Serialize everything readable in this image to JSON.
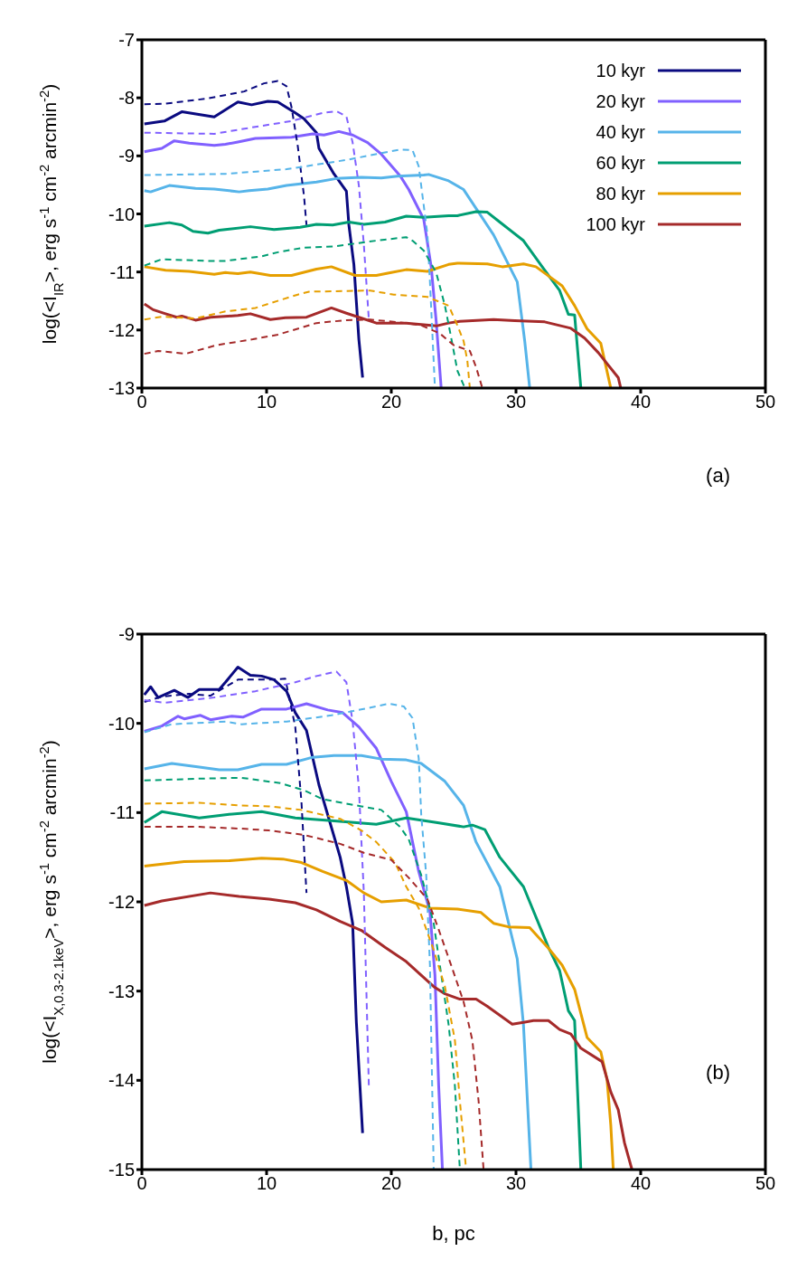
{
  "chart_data": [
    {
      "type": "line",
      "ylabel": "log(<I$_{IR}$>, erg s$^{-1}$ cm$^{-2}$ arcmin$^{-2}$)",
      "xlim": [
        0,
        50
      ],
      "xticks": [
        0,
        10,
        20,
        30,
        40,
        50
      ],
      "ylim": [
        -13,
        -7
      ],
      "yticks": [
        -13,
        -12,
        -11,
        -10,
        -9,
        -8,
        -7
      ],
      "legend": "top right",
      "annotations": [
        "(a)"
      ],
      "series": [
        {
          "name": "10 kyr",
          "color": "#0a0a80",
          "line_style": "solid",
          "x": [
            0.2,
            1.8,
            3.2,
            5.8,
            7.7,
            8.8,
            10.1,
            10.9,
            12.3,
            13.0,
            14.0,
            14.2,
            15.4,
            16.4,
            16.6,
            17.0,
            17.4,
            17.7
          ],
          "values": [
            -8.45,
            -8.4,
            -8.24,
            -8.33,
            -8.07,
            -8.12,
            -8.06,
            -8.07,
            -8.26,
            -8.36,
            -8.6,
            -8.87,
            -9.31,
            -9.61,
            -10.19,
            -10.87,
            -12.16,
            -12.82
          ]
        },
        {
          "name": "20 kyr",
          "color": "#8060ff",
          "line_style": "solid",
          "x": [
            0.2,
            1.6,
            2.6,
            3.8,
            5.8,
            6.7,
            7.7,
            9.1,
            12.0,
            13.7,
            14.6,
            15.8,
            16.9,
            18.1,
            19.2,
            20.7,
            21.4,
            22.6,
            23.2,
            23.6,
            24.0
          ],
          "values": [
            -8.93,
            -8.87,
            -8.74,
            -8.78,
            -8.82,
            -8.8,
            -8.76,
            -8.7,
            -8.68,
            -8.62,
            -8.64,
            -8.58,
            -8.64,
            -8.77,
            -8.97,
            -9.34,
            -9.58,
            -10.09,
            -10.91,
            -11.85,
            -13
          ]
        },
        {
          "name": "40 kyr",
          "color": "#56b4e9",
          "line_style": "solid",
          "x": [
            0.2,
            0.7,
            2.2,
            4.3,
            5.8,
            7.8,
            8.6,
            10.1,
            11.6,
            14.0,
            15.6,
            17.6,
            19.2,
            20.5,
            22.6,
            23.0,
            24.6,
            25.8,
            28.2,
            30.1,
            30.7,
            31.1
          ],
          "values": [
            -9.6,
            -9.62,
            -9.51,
            -9.56,
            -9.57,
            -9.62,
            -9.6,
            -9.57,
            -9.51,
            -9.45,
            -9.39,
            -9.37,
            -9.38,
            -9.35,
            -9.33,
            -9.32,
            -9.43,
            -9.58,
            -10.36,
            -11.17,
            -12.19,
            -13
          ]
        },
        {
          "name": "60 kyr",
          "color": "#009e73",
          "line_style": "solid",
          "x": [
            0.2,
            2.2,
            3.2,
            4.1,
            5.3,
            6.2,
            8.7,
            10.6,
            12.7,
            14.0,
            15.3,
            16.6,
            17.8,
            19.5,
            21.2,
            22.6,
            24.6,
            25.3,
            26.8,
            27.7,
            28.7,
            30.6,
            32.1,
            33.5,
            34.2,
            34.7,
            35.2
          ],
          "values": [
            -10.21,
            -10.15,
            -10.19,
            -10.3,
            -10.33,
            -10.28,
            -10.22,
            -10.27,
            -10.23,
            -10.18,
            -10.19,
            -10.14,
            -10.18,
            -10.14,
            -10.04,
            -10.06,
            -10.03,
            -10.03,
            -9.96,
            -9.97,
            -10.14,
            -10.46,
            -10.91,
            -11.32,
            -11.73,
            -11.74,
            -13
          ]
        },
        {
          "name": "80 kyr",
          "color": "#e69f00",
          "line_style": "solid",
          "x": [
            0.2,
            1.9,
            3.8,
            5.8,
            6.7,
            7.7,
            8.7,
            10.3,
            12.0,
            14.0,
            15.2,
            17.1,
            18.8,
            20.0,
            21.2,
            22.9,
            24.6,
            25.3,
            27.7,
            28.9,
            30.6,
            31.6,
            33.7,
            34.7,
            35.7,
            36.8,
            37.6
          ],
          "values": [
            -10.91,
            -10.97,
            -10.99,
            -11.04,
            -11.01,
            -11.03,
            -11.0,
            -11.06,
            -11.06,
            -10.95,
            -10.91,
            -11.06,
            -11.06,
            -11.01,
            -10.96,
            -10.99,
            -10.87,
            -10.85,
            -10.86,
            -10.91,
            -10.86,
            -10.91,
            -11.24,
            -11.58,
            -11.98,
            -12.23,
            -13
          ]
        },
        {
          "name": "100 kyr",
          "color": "#a52a2a",
          "line_style": "solid",
          "x": [
            0.2,
            0.9,
            1.9,
            2.8,
            3.2,
            4.3,
            5.5,
            7.7,
            8.7,
            10.3,
            11.5,
            13.2,
            15.2,
            16.4,
            17.4,
            18.8,
            21.2,
            23.6,
            24.6,
            25.5,
            28.2,
            29.9,
            32.3,
            34.4,
            35.5,
            36.6,
            38.2,
            38.4
          ],
          "values": [
            -11.55,
            -11.65,
            -11.72,
            -11.78,
            -11.76,
            -11.83,
            -11.78,
            -11.75,
            -11.72,
            -11.82,
            -11.79,
            -11.78,
            -11.62,
            -11.71,
            -11.78,
            -11.88,
            -11.88,
            -11.93,
            -11.88,
            -11.85,
            -11.82,
            -11.84,
            -11.86,
            -11.97,
            -12.14,
            -12.39,
            -12.82,
            -13
          ]
        },
        {
          "color": "#0a0a80",
          "line_style": "dashed",
          "x": [
            0.2,
            1.9,
            5.3,
            8.2,
            9.8,
            10.9,
            11.6,
            12.0,
            12.5,
            13.0,
            13.2
          ],
          "values": [
            -8.11,
            -8.1,
            -8.01,
            -7.89,
            -7.75,
            -7.71,
            -7.8,
            -8.16,
            -8.83,
            -9.69,
            -10.19
          ]
        },
        {
          "color": "#8060ff",
          "line_style": "dashed",
          "x": [
            0.2,
            5.8,
            9.1,
            12.0,
            14.5,
            15.6,
            16.4,
            16.9,
            17.4,
            17.8,
            18.2
          ],
          "values": [
            -8.6,
            -8.62,
            -8.5,
            -8.4,
            -8.26,
            -8.23,
            -8.32,
            -8.77,
            -9.51,
            -10.53,
            -11.82
          ]
        },
        {
          "color": "#56b4e9",
          "line_style": "dashed",
          "x": [
            0.2,
            6.7,
            11.6,
            16.4,
            20.7,
            21.7,
            22.2,
            22.6,
            22.9,
            23.1,
            23.5
          ],
          "values": [
            -9.33,
            -9.31,
            -9.23,
            -9.07,
            -8.89,
            -8.9,
            -9.18,
            -9.85,
            -10.36,
            -11.17,
            -13
          ]
        },
        {
          "color": "#009e73",
          "line_style": "dashed",
          "x": [
            0.2,
            1.6,
            5.3,
            6.7,
            9.6,
            11.1,
            13.0,
            15.4,
            18.8,
            21.2,
            21.7,
            22.6,
            23.6,
            24.3,
            24.8,
            25.3,
            25.9
          ],
          "values": [
            -10.89,
            -10.78,
            -10.81,
            -10.81,
            -10.73,
            -10.65,
            -10.58,
            -10.56,
            -10.46,
            -10.4,
            -10.46,
            -10.63,
            -11.01,
            -11.58,
            -12.13,
            -12.7,
            -13
          ]
        },
        {
          "color": "#e69f00",
          "line_style": "dashed",
          "x": [
            0.2,
            1.6,
            4.3,
            6.7,
            9.1,
            12.5,
            13.4,
            18.3,
            20.2,
            22.9,
            24.6,
            25.3,
            25.8,
            26.1,
            26.3
          ],
          "values": [
            -11.82,
            -11.77,
            -11.8,
            -11.68,
            -11.62,
            -11.39,
            -11.34,
            -11.32,
            -11.39,
            -11.43,
            -11.58,
            -11.92,
            -12.19,
            -12.53,
            -13
          ]
        },
        {
          "color": "#a52a2a",
          "line_style": "dashed",
          "x": [
            0.2,
            1.3,
            3.5,
            6.0,
            8.9,
            10.9,
            14.0,
            16.4,
            18.3,
            21.2,
            22.4,
            23.9,
            25.0,
            26.3,
            26.8,
            27.3
          ],
          "values": [
            -12.41,
            -12.36,
            -12.41,
            -12.26,
            -12.16,
            -12.08,
            -11.88,
            -11.83,
            -11.82,
            -11.88,
            -11.92,
            -12.06,
            -12.26,
            -12.36,
            -12.64,
            -13
          ]
        }
      ]
    },
    {
      "type": "line",
      "xlabel": "b, pc",
      "ylabel": "log(<I$_{X,0.3-2.1keV}$>, erg s$^{-1}$ cm$^{-2}$ arcmin$^{-2}$)",
      "xlim": [
        0,
        50
      ],
      "xticks": [
        0,
        10,
        20,
        30,
        40,
        50
      ],
      "ylim": [
        -15,
        -9
      ],
      "yticks": [
        -15,
        -14,
        -13,
        -12,
        -11,
        -10,
        -9
      ],
      "annotations": [
        "(b)"
      ],
      "series": [
        {
          "color": "#0a0a80",
          "line_style": "solid",
          "x": [
            0.2,
            0.7,
            1.3,
            2.6,
            3.7,
            4.6,
            6.2,
            6.7,
            7.7,
            8.7,
            9.6,
            10.6,
            11.6,
            12.3,
            13.2,
            14.2,
            15.9,
            16.4,
            16.9,
            17.2,
            17.7
          ],
          "values": [
            -9.68,
            -9.59,
            -9.71,
            -9.63,
            -9.71,
            -9.62,
            -9.62,
            -9.54,
            -9.37,
            -9.46,
            -9.47,
            -9.51,
            -9.64,
            -9.88,
            -10.08,
            -10.69,
            -11.5,
            -11.83,
            -12.24,
            -13.35,
            -14.59
          ]
        },
        {
          "color": "#8060ff",
          "line_style": "solid",
          "x": [
            0.2,
            1.6,
            2.9,
            3.4,
            4.7,
            5.5,
            7.2,
            8.1,
            9.6,
            11.6,
            13.2,
            14.9,
            16.1,
            17.4,
            18.8,
            20.0,
            21.2,
            22.2,
            23.1,
            23.5,
            23.8,
            24.1
          ],
          "values": [
            -10.09,
            -10.03,
            -9.92,
            -9.95,
            -9.91,
            -9.96,
            -9.92,
            -9.93,
            -9.84,
            -9.84,
            -9.78,
            -9.85,
            -9.88,
            -10.04,
            -10.28,
            -10.65,
            -10.99,
            -11.66,
            -12.11,
            -12.82,
            -14.06,
            -15
          ]
        },
        {
          "color": "#56b4e9",
          "line_style": "solid",
          "x": [
            0.2,
            2.4,
            4.6,
            6.2,
            7.7,
            9.6,
            11.6,
            13.7,
            15.4,
            17.6,
            19.2,
            21.2,
            22.4,
            24.3,
            25.8,
            26.8,
            28.7,
            30.1,
            30.6,
            31.2
          ],
          "values": [
            -10.51,
            -10.45,
            -10.49,
            -10.52,
            -10.52,
            -10.46,
            -10.46,
            -10.38,
            -10.36,
            -10.36,
            -10.4,
            -10.41,
            -10.45,
            -10.65,
            -10.92,
            -11.33,
            -11.83,
            -12.64,
            -13.38,
            -15
          ]
        },
        {
          "color": "#009e73",
          "line_style": "solid",
          "x": [
            0.2,
            1.6,
            4.6,
            7.0,
            9.6,
            12.3,
            15.2,
            18.8,
            21.2,
            23.6,
            25.8,
            26.5,
            27.5,
            28.7,
            30.6,
            32.6,
            33.5,
            34.2,
            34.7,
            35.2
          ],
          "values": [
            -11.11,
            -10.99,
            -11.06,
            -11.02,
            -10.99,
            -11.06,
            -11.09,
            -11.13,
            -11.06,
            -11.11,
            -11.16,
            -11.14,
            -11.19,
            -11.5,
            -11.83,
            -12.51,
            -12.77,
            -13.22,
            -13.33,
            -15
          ]
        },
        {
          "color": "#e69f00",
          "line_style": "solid",
          "x": [
            0.2,
            3.4,
            7.0,
            9.6,
            11.3,
            12.8,
            14.5,
            16.4,
            17.8,
            19.2,
            21.2,
            23.1,
            25.3,
            27.2,
            28.2,
            29.4,
            31.1,
            32.6,
            33.7,
            34.7,
            35.7,
            36.8,
            37.3,
            37.6,
            37.8
          ],
          "values": [
            -11.6,
            -11.55,
            -11.54,
            -11.51,
            -11.52,
            -11.56,
            -11.66,
            -11.76,
            -11.9,
            -12.0,
            -11.98,
            -12.07,
            -12.08,
            -12.12,
            -12.24,
            -12.28,
            -12.29,
            -12.52,
            -12.71,
            -12.98,
            -13.52,
            -13.68,
            -13.99,
            -14.5,
            -15
          ]
        },
        {
          "color": "#a52a2a",
          "line_style": "solid",
          "x": [
            0.2,
            1.6,
            5.5,
            7.8,
            10.2,
            12.3,
            14.0,
            15.9,
            17.6,
            19.5,
            21.2,
            23.4,
            24.3,
            25.5,
            26.8,
            27.7,
            29.7,
            30.6,
            31.4,
            32.6,
            33.5,
            34.4,
            35.2,
            36.9,
            37.6,
            38.2,
            38.7,
            39.3
          ],
          "values": [
            -12.04,
            -11.99,
            -11.9,
            -11.94,
            -11.97,
            -12.01,
            -12.09,
            -12.22,
            -12.32,
            -12.51,
            -12.67,
            -12.95,
            -13.03,
            -13.09,
            -13.09,
            -13.17,
            -13.37,
            -13.35,
            -13.33,
            -13.33,
            -13.43,
            -13.48,
            -13.64,
            -13.79,
            -14.13,
            -14.33,
            -14.7,
            -15
          ]
        },
        {
          "color": "#0a0a80",
          "line_style": "dashed",
          "x": [
            0.2,
            1.6,
            3.8,
            5.5,
            7.7,
            10.4,
            11.5,
            12.3,
            12.8,
            13.2
          ],
          "values": [
            -9.76,
            -9.7,
            -9.67,
            -9.69,
            -9.51,
            -9.51,
            -9.5,
            -10.04,
            -10.89,
            -11.9
          ]
        },
        {
          "color": "#8060ff",
          "line_style": "dashed",
          "x": [
            0.2,
            1.8,
            5.8,
            9.1,
            12.3,
            14.0,
            15.6,
            16.4,
            16.9,
            17.4,
            17.8,
            18.2
          ],
          "values": [
            -9.74,
            -9.77,
            -9.71,
            -9.64,
            -9.54,
            -9.47,
            -9.42,
            -9.54,
            -9.98,
            -10.72,
            -11.9,
            -14.06
          ]
        },
        {
          "color": "#56b4e9",
          "line_style": "dashed",
          "x": [
            0.2,
            2.4,
            6.7,
            8.0,
            11.6,
            15.2,
            18.8,
            19.8,
            21.0,
            21.7,
            22.2,
            22.4,
            22.8,
            23.1,
            23.4
          ],
          "values": [
            -10.1,
            -10.01,
            -9.98,
            -10.01,
            -9.98,
            -9.91,
            -9.81,
            -9.78,
            -9.81,
            -9.94,
            -10.39,
            -11.02,
            -11.7,
            -12.71,
            -15
          ]
        },
        {
          "color": "#009e73",
          "line_style": "dashed",
          "x": [
            0.2,
            4.6,
            8.0,
            11.1,
            13.0,
            14.5,
            17.6,
            19.2,
            20.7,
            21.4,
            22.4,
            23.4,
            24.6,
            25.1,
            25.5
          ],
          "values": [
            -10.64,
            -10.62,
            -10.61,
            -10.67,
            -10.75,
            -10.85,
            -10.93,
            -10.97,
            -11.16,
            -11.3,
            -11.7,
            -12.24,
            -13.38,
            -14.06,
            -15
          ]
        },
        {
          "color": "#e69f00",
          "line_style": "dashed",
          "x": [
            0.2,
            4.6,
            8.0,
            10.2,
            12.8,
            15.9,
            17.6,
            18.8,
            20.3,
            21.2,
            22.2,
            23.4,
            24.3,
            25.1,
            25.5,
            26.0
          ],
          "values": [
            -10.9,
            -10.89,
            -10.92,
            -10.93,
            -10.97,
            -11.07,
            -11.2,
            -11.33,
            -11.56,
            -11.83,
            -12.07,
            -12.54,
            -12.95,
            -13.55,
            -14.23,
            -15
          ]
        },
        {
          "color": "#a52a2a",
          "line_style": "dashed",
          "x": [
            0.2,
            4.6,
            8.0,
            10.2,
            13.0,
            15.9,
            17.8,
            20.0,
            21.4,
            22.9,
            23.8,
            24.8,
            25.8,
            26.5,
            27.0,
            27.4
          ],
          "values": [
            -11.16,
            -11.16,
            -11.18,
            -11.2,
            -11.25,
            -11.35,
            -11.45,
            -11.53,
            -11.73,
            -11.97,
            -12.31,
            -12.71,
            -13.12,
            -13.55,
            -14.23,
            -15
          ]
        }
      ]
    }
  ]
}
